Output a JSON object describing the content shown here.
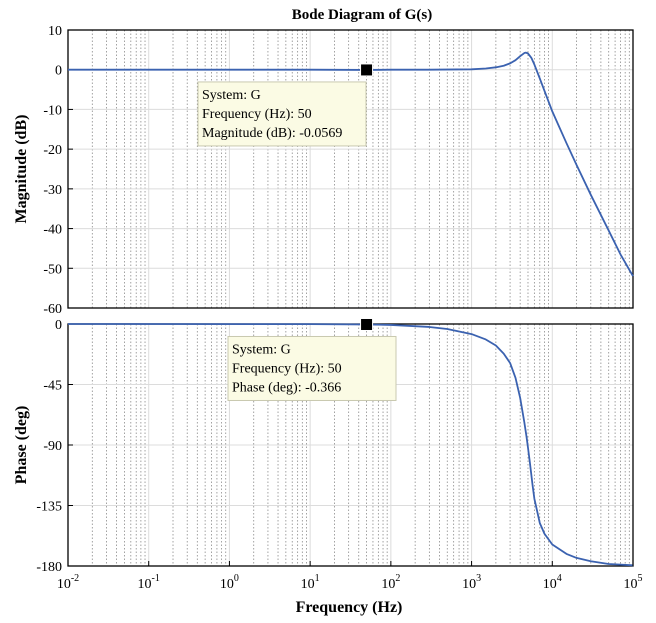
{
  "chart_data": {
    "type": "line",
    "title": "Bode Diagram of G(s)",
    "xlabel": "Frequency  (Hz)",
    "xscale": "log",
    "xlim": [
      0.01,
      100000
    ],
    "x_ticks": [
      {
        "base": "10",
        "exp": "-2"
      },
      {
        "base": "10",
        "exp": "-1"
      },
      {
        "base": "10",
        "exp": "0"
      },
      {
        "base": "10",
        "exp": "1"
      },
      {
        "base": "10",
        "exp": "2"
      },
      {
        "base": "10",
        "exp": "3"
      },
      {
        "base": "10",
        "exp": "4"
      },
      {
        "base": "10",
        "exp": "5"
      }
    ],
    "grid": true,
    "panels": [
      {
        "name": "magnitude",
        "ylabel": "Magnitude (dB)",
        "ylim": [
          -60,
          10
        ],
        "y_ticks": [
          "10",
          "0",
          "-10",
          "-20",
          "-30",
          "-40",
          "-50",
          "-60"
        ],
        "series": [
          {
            "color": "#3b62b0",
            "points": [
              [
                0.01,
                0
              ],
              [
                1,
                0
              ],
              [
                10,
                0
              ],
              [
                50,
                -0.0569
              ],
              [
                100,
                0
              ],
              [
                300,
                0
              ],
              [
                1000,
                0.1
              ],
              [
                1500,
                0.3
              ],
              [
                2000,
                0.6
              ],
              [
                2500,
                1.0
              ],
              [
                3000,
                1.6
              ],
              [
                3500,
                2.4
              ],
              [
                4000,
                3.4
              ],
              [
                4500,
                4.2
              ],
              [
                4700,
                4.3
              ],
              [
                5000,
                4.1
              ],
              [
                5500,
                3.0
              ],
              [
                6000,
                1.3
              ],
              [
                7000,
                -2.2
              ],
              [
                8000,
                -5.3
              ],
              [
                10000,
                -10.5
              ],
              [
                15000,
                -18.5
              ],
              [
                20000,
                -24
              ],
              [
                30000,
                -31.5
              ],
              [
                50000,
                -40.5
              ],
              [
                70000,
                -46.5
              ],
              [
                100000,
                -52
              ]
            ]
          }
        ],
        "datatip": {
          "x": 50,
          "y": -0.0569,
          "lines": [
            "System: G",
            "Frequency (Hz): 50",
            "Magnitude (dB): -0.0569"
          ]
        }
      },
      {
        "name": "phase",
        "ylabel": "Phase (deg)",
        "ylim": [
          -180,
          0
        ],
        "y_ticks": [
          "0",
          "-45",
          "-90",
          "-135",
          "-180"
        ],
        "series": [
          {
            "color": "#3b62b0",
            "points": [
              [
                0.01,
                0
              ],
              [
                10,
                -0.1
              ],
              [
                50,
                -0.366
              ],
              [
                100,
                -0.7
              ],
              [
                300,
                -2.2
              ],
              [
                500,
                -3.7
              ],
              [
                1000,
                -7.5
              ],
              [
                1500,
                -11.5
              ],
              [
                2000,
                -16
              ],
              [
                2500,
                -22
              ],
              [
                3000,
                -29
              ],
              [
                3500,
                -40
              ],
              [
                4000,
                -55
              ],
              [
                4500,
                -73
              ],
              [
                4800,
                -84
              ],
              [
                5000,
                -92
              ],
              [
                5300,
                -104
              ],
              [
                5700,
                -120
              ],
              [
                6000,
                -130
              ],
              [
                7000,
                -148
              ],
              [
                8000,
                -156
              ],
              [
                10000,
                -164
              ],
              [
                15000,
                -171
              ],
              [
                20000,
                -174
              ],
              [
                30000,
                -176.5
              ],
              [
                50000,
                -178.5
              ],
              [
                100000,
                -179.5
              ]
            ]
          }
        ],
        "datatip": {
          "x": 50,
          "y": -0.366,
          "lines": [
            "System: G",
            "Frequency (Hz): 50",
            "Phase (deg): -0.366"
          ]
        }
      }
    ]
  }
}
